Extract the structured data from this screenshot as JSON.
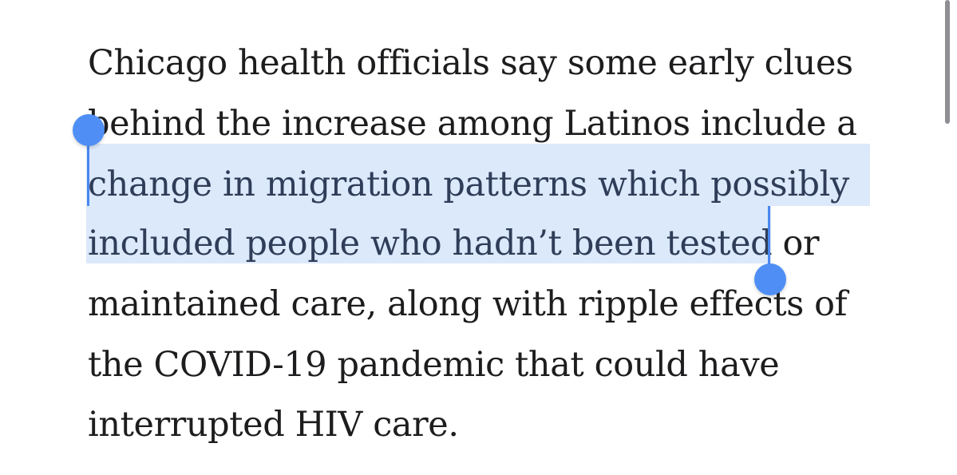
{
  "article": {
    "paragraph": {
      "line1": "Chicago health officials say some early clues",
      "line2": "behind the increase among Latinos include a",
      "line3": "change in migration patterns which possibly",
      "line4_selected": "included people who hadn’t been tested",
      "line4_rest": " or",
      "line5": "maintained care, along with ripple effects of",
      "line6": "the COVID-19 pandemic that could have",
      "line7": "interrupted HIV care."
    }
  },
  "selection": {
    "selected_text": "change in migration patterns which possibly included people who hadn’t been tested",
    "highlight_color": "#dce9fb",
    "handle_color": "#4f8ff5"
  },
  "scrollbar": {
    "thumb_color": "#8e8e93"
  }
}
